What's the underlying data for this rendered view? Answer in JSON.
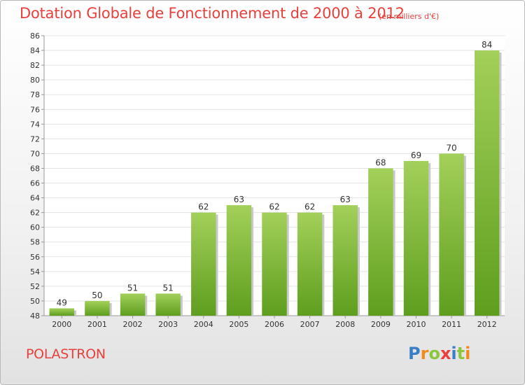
{
  "title": "Dotation Globale de Fonctionnement de 2000 à 2012",
  "unit_note": "(en milliers d'€)",
  "commune": "POLASTRON",
  "brand": {
    "letters": [
      "P",
      "r",
      "o",
      "x",
      "i",
      "t",
      "i"
    ],
    "colors": [
      "#3a7ec7",
      "#f08a1c",
      "#8cc63f",
      "#e8403c",
      "#3a7ec7",
      "#8cc63f",
      "#f08a1c"
    ]
  },
  "colors": {
    "title": "#e8403c",
    "bar_top": "#a3d05a",
    "bar_bottom": "#5e9e1e",
    "grid": "#e3e3e3"
  },
  "chart_data": {
    "type": "bar",
    "categories": [
      "2000",
      "2001",
      "2002",
      "2003",
      "2004",
      "2005",
      "2006",
      "2007",
      "2008",
      "2009",
      "2010",
      "2011",
      "2012"
    ],
    "values": [
      49,
      50,
      51,
      51,
      62,
      63,
      62,
      62,
      63,
      68,
      69,
      70,
      84
    ],
    "ylim": [
      48,
      86
    ],
    "yticks": [
      48,
      50,
      52,
      54,
      56,
      58,
      60,
      62,
      64,
      66,
      68,
      70,
      72,
      74,
      76,
      78,
      80,
      82,
      84,
      86
    ],
    "grid": true
  }
}
